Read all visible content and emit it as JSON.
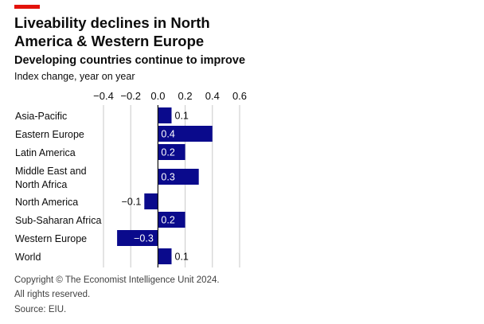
{
  "header": {
    "title": "Liveability declines in North America & Western Europe",
    "subtitle": "Developing countries continue to improve",
    "unit": "Index change, year on year"
  },
  "footer": {
    "copyright": "Copyright © The Economist Intelligence Unit 2024.",
    "rights": "All rights reserved.",
    "source": "Source: EIU."
  },
  "colors": {
    "accent": "#e3120b",
    "bar": "#0a0a8c",
    "grid": "#c9c9c9",
    "zero_line": "#121212"
  },
  "chart_data": {
    "type": "bar",
    "orientation": "horizontal",
    "title": "Liveability declines in North America & Western Europe",
    "subtitle": "Developing countries continue to improve",
    "xlabel": "Index change, year on year",
    "ylabel": "",
    "xlim": [
      -0.4,
      0.6
    ],
    "ticks": [
      -0.4,
      -0.2,
      0.0,
      0.2,
      0.4,
      0.6
    ],
    "tick_labels": [
      "−0.4",
      "−0.2",
      "0.0",
      "0.2",
      "0.4",
      "0.6"
    ],
    "grid": true,
    "categories": [
      [
        "Asia-Pacific"
      ],
      [
        "Eastern Europe"
      ],
      [
        "Latin America"
      ],
      [
        "Middle East and",
        "North Africa"
      ],
      [
        "North America"
      ],
      [
        "Sub-Saharan Africa"
      ],
      [
        "Western Europe"
      ],
      [
        "World"
      ]
    ],
    "values": [
      0.1,
      0.4,
      0.2,
      0.3,
      -0.1,
      0.2,
      -0.3,
      0.1
    ],
    "value_labels": [
      "0.1",
      "0.4",
      "0.2",
      "0.3",
      "−0.1",
      "0.2",
      "−0.3",
      "0.1"
    ]
  }
}
